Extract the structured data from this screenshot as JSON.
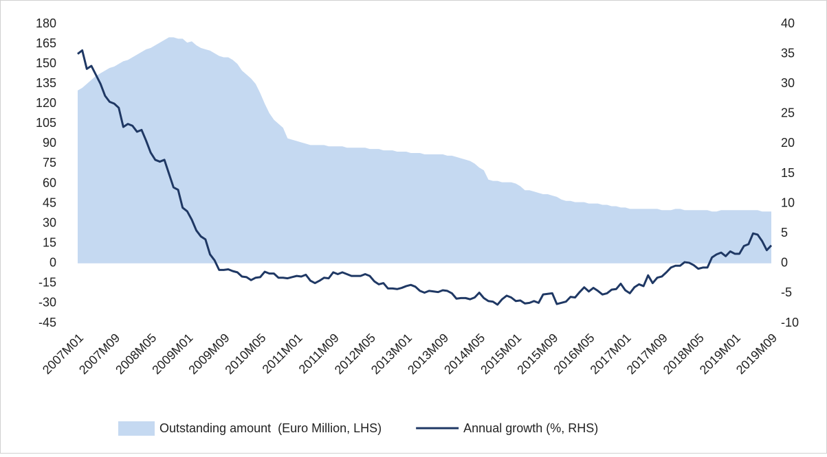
{
  "chart_data": {
    "type": "area-line",
    "categories": [
      "2007M01",
      null,
      null,
      null,
      null,
      null,
      null,
      null,
      "2007M09",
      null,
      null,
      null,
      null,
      null,
      null,
      null,
      "2008M05",
      null,
      null,
      null,
      null,
      null,
      null,
      null,
      "2009M01",
      null,
      null,
      null,
      null,
      null,
      null,
      null,
      "2009M09",
      null,
      null,
      null,
      null,
      null,
      null,
      null,
      "2010M05",
      null,
      null,
      null,
      null,
      null,
      null,
      null,
      "2011M01",
      null,
      null,
      null,
      null,
      null,
      null,
      null,
      "2011M09",
      null,
      null,
      null,
      null,
      null,
      null,
      null,
      "2012M05",
      null,
      null,
      null,
      null,
      null,
      null,
      null,
      "2013M01",
      null,
      null,
      null,
      null,
      null,
      null,
      null,
      "2013M09",
      null,
      null,
      null,
      null,
      null,
      null,
      null,
      "2014M05",
      null,
      null,
      null,
      null,
      null,
      null,
      null,
      "2015M01",
      null,
      null,
      null,
      null,
      null,
      null,
      null,
      "2015M09",
      null,
      null,
      null,
      null,
      null,
      null,
      null,
      "2016M05",
      null,
      null,
      null,
      null,
      null,
      null,
      null,
      "2017M01",
      null,
      null,
      null,
      null,
      null,
      null,
      null,
      "2017M09",
      null,
      null,
      null,
      null,
      null,
      null,
      null,
      "2018M05",
      null,
      null,
      null,
      null,
      null,
      null,
      null,
      "2019M01",
      null,
      null,
      null,
      null,
      null,
      null,
      null,
      "2019M09"
    ],
    "series": [
      {
        "name": "Outstanding amount  (Euro Million, LHS)",
        "color": "#c5d9f1",
        "kind": "area",
        "axis": "y",
        "values": [
          130,
          132,
          135,
          138,
          141,
          143,
          145,
          147,
          148,
          150,
          152,
          153,
          155,
          157,
          159,
          161,
          162,
          164,
          166,
          168,
          170,
          170,
          169,
          169,
          166,
          167,
          164,
          162,
          161,
          160,
          158,
          156,
          155,
          155,
          153,
          150,
          145,
          142,
          139,
          135,
          128,
          120,
          113,
          108,
          105,
          102,
          94,
          93,
          92,
          91,
          90,
          89,
          89,
          89,
          89,
          88,
          88,
          88,
          88,
          87,
          87,
          87,
          87,
          87,
          86,
          86,
          86,
          85,
          85,
          85,
          84,
          84,
          84,
          83,
          83,
          83,
          82,
          82,
          82,
          82,
          82,
          81,
          81,
          80,
          79,
          78,
          77,
          75,
          72,
          70,
          63,
          62,
          62,
          61,
          61,
          61,
          60,
          58,
          55,
          55,
          54,
          53,
          52,
          52,
          51,
          50,
          48,
          47,
          47,
          46,
          46,
          46,
          45,
          45,
          45,
          44,
          44,
          43,
          43,
          42,
          42,
          41,
          41,
          41,
          41,
          41,
          41,
          41,
          40,
          40,
          40,
          41,
          41,
          40,
          40,
          40,
          40,
          40,
          40,
          39,
          39,
          40,
          40,
          40,
          40,
          40,
          40,
          40,
          40,
          40,
          39,
          39,
          39
        ]
      },
      {
        "name": "Annual growth (%, RHS)",
        "color": "#1f3864",
        "kind": "line",
        "axis": "y2",
        "values": [
          35,
          35.6,
          32.5,
          33,
          31.5,
          30,
          28,
          27,
          26.7,
          26,
          22.8,
          23.3,
          23,
          22,
          22.3,
          20.5,
          18.5,
          17.3,
          17,
          17.3,
          15,
          12.7,
          12.3,
          9.3,
          8.7,
          7.3,
          5.5,
          4.5,
          4,
          1.5,
          0.5,
          -1.1,
          -1.1,
          -1,
          -1.3,
          -1.5,
          -2.2,
          -2.3,
          -2.8,
          -2.4,
          -2.3,
          -1.4,
          -1.7,
          -1.7,
          -2.4,
          -2.4,
          -2.5,
          -2.3,
          -2.1,
          -2.2,
          -1.9,
          -2.9,
          -3.3,
          -2.9,
          -2.4,
          -2.5,
          -1.5,
          -1.8,
          -1.5,
          -1.8,
          -2.1,
          -2.1,
          -2.1,
          -1.8,
          -2.1,
          -3,
          -3.5,
          -3.3,
          -4.2,
          -4.2,
          -4.3,
          -4.1,
          -3.8,
          -3.6,
          -3.9,
          -4.6,
          -4.9,
          -4.6,
          -4.7,
          -4.8,
          -4.5,
          -4.6,
          -5,
          -5.9,
          -5.8,
          -5.8,
          -6,
          -5.7,
          -4.9,
          -5.8,
          -6.3,
          -6.4,
          -6.9,
          -6,
          -5.4,
          -5.7,
          -6.3,
          -6.2,
          -6.7,
          -6.6,
          -6.3,
          -6.6,
          -5.2,
          -5.1,
          -5,
          -6.8,
          -6.6,
          -6.4,
          -5.6,
          -5.7,
          -4.8,
          -4,
          -4.7,
          -4.1,
          -4.6,
          -5.2,
          -5,
          -4.4,
          -4.3,
          -3.4,
          -4.5,
          -5,
          -4,
          -3.5,
          -3.8,
          -2,
          -3.3,
          -2.4,
          -2.2,
          -1.5,
          -0.7,
          -0.4,
          -0.4,
          0.2,
          0.1,
          -0.3,
          -0.9,
          -0.7,
          -0.7,
          1,
          1.5,
          1.8,
          1.2,
          2,
          1.6,
          1.6,
          2.9,
          3.2,
          5,
          4.8,
          3.7,
          2.2,
          3
        ]
      }
    ],
    "ylim": [
      -45,
      180
    ],
    "yticks": [
      -45,
      -30,
      -15,
      0,
      15,
      30,
      45,
      60,
      75,
      90,
      105,
      120,
      135,
      150,
      165,
      180
    ],
    "y2lim": [
      -10,
      40
    ],
    "y2ticks": [
      -10,
      -5,
      0,
      5,
      10,
      15,
      20,
      25,
      30,
      35,
      40
    ],
    "legend": "bottom"
  }
}
